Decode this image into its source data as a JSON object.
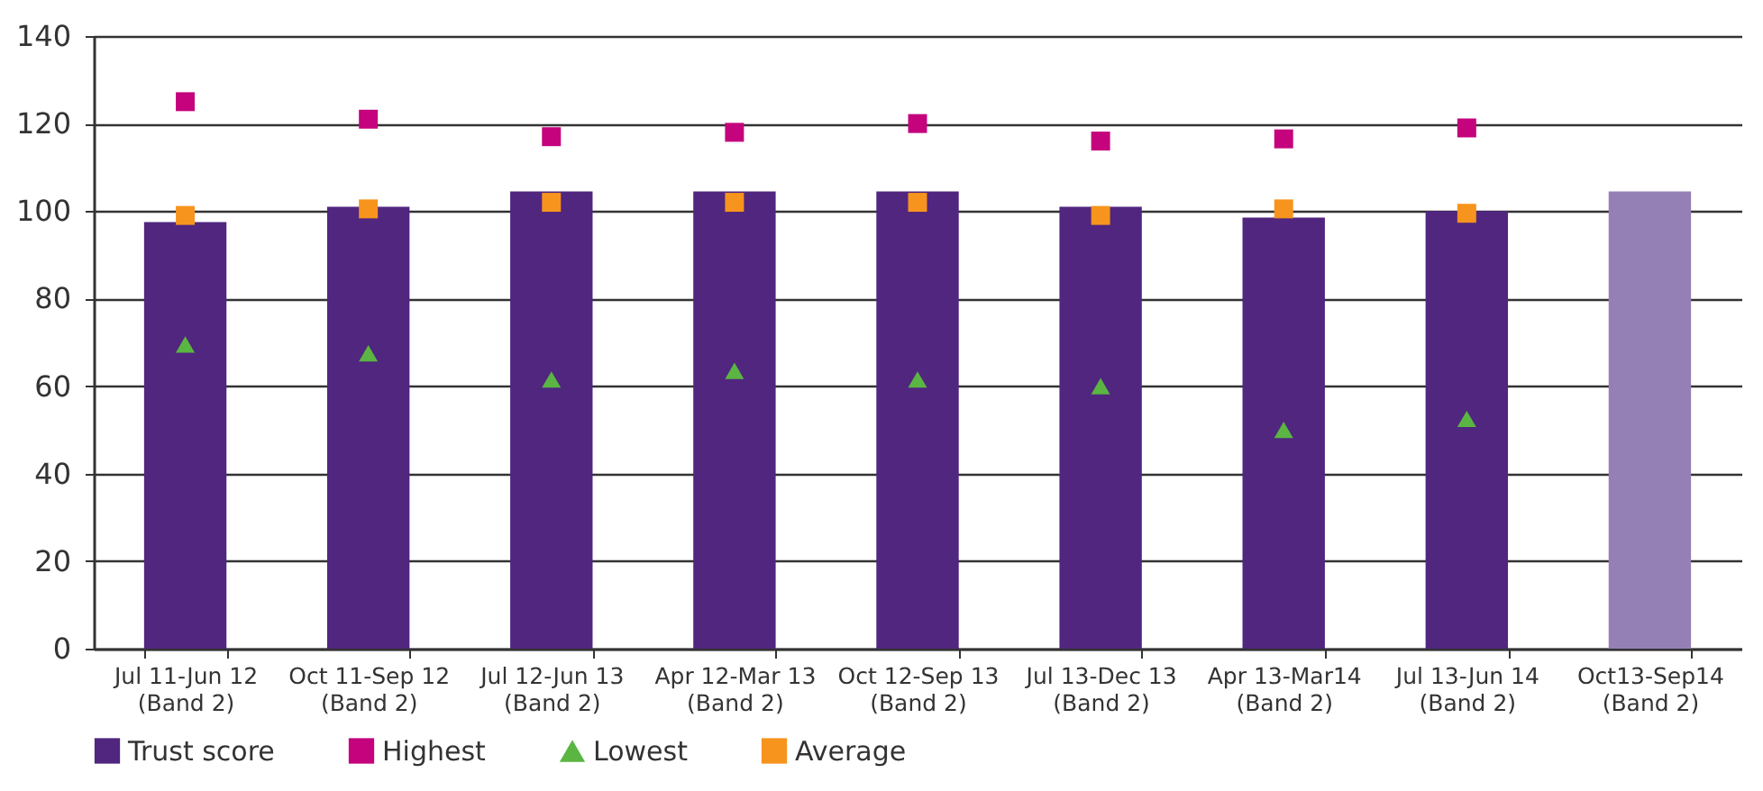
{
  "chart_data": {
    "type": "bar",
    "categories": [
      "Jul 11-Jun 12\n(Band 2)",
      "Oct 11-Sep 12\n(Band 2)",
      "Jul 12-Jun 13\n(Band 2)",
      "Apr 12-Mar 13\n(Band 2)",
      "Oct 12-Sep 13\n(Band 2)",
      "Jul 13-Dec 13\n(Band 2)",
      "Apr 13-Mar14\n(Band 2)",
      "Jul 13-Jun 14\n(Band 2)",
      "Oct13-Sep14\n(Band 2)"
    ],
    "series": [
      {
        "name": "Trust score",
        "color": "#50267f",
        "colors": [
          "#50267f",
          "#50267f",
          "#50267f",
          "#50267f",
          "#50267f",
          "#50267f",
          "#50267f",
          "#50267f",
          "#9580b5"
        ],
        "values": [
          97.5,
          101,
          104.5,
          104.5,
          104.5,
          101,
          98.5,
          100,
          104.5
        ]
      },
      {
        "name": "Highest",
        "type": "scatter",
        "marker": "square",
        "color": "#c4037d",
        "values": [
          125,
          121,
          117,
          118,
          120,
          116,
          116.5,
          119,
          null
        ]
      },
      {
        "name": "Lowest",
        "type": "scatter",
        "marker": "triangle",
        "color": "#5bb543",
        "values": [
          69.5,
          67.5,
          61.5,
          63.5,
          61.5,
          60,
          50,
          52.5,
          null
        ]
      },
      {
        "name": "Average",
        "type": "scatter",
        "marker": "square",
        "color": "#f7941d",
        "values": [
          99,
          100.5,
          102,
          102,
          102,
          99,
          100.5,
          99.5,
          null
        ]
      }
    ],
    "ylim": [
      0,
      140
    ],
    "yticks": [
      0,
      20,
      40,
      60,
      80,
      100,
      120,
      140
    ],
    "grid": "y",
    "legend": "bottom"
  }
}
